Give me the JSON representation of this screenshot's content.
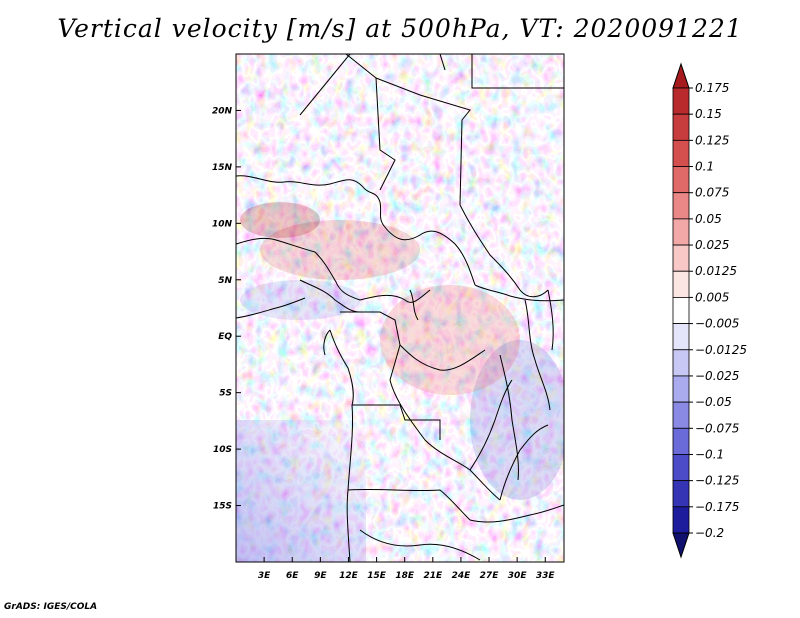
{
  "title": "Vertical velocity [m/s] at 500hPa, VT: 2020091221",
  "credit": "GrADS: IGES/COLA",
  "map": {
    "lon_range": [
      0,
      35
    ],
    "lat_range": [
      -20,
      25
    ],
    "lon_ticks": [
      "3E",
      "6E",
      "9E",
      "12E",
      "15E",
      "18E",
      "21E",
      "24E",
      "27E",
      "30E",
      "33E"
    ],
    "lat_ticks": [
      "20N",
      "15N",
      "10N",
      "5N",
      "EQ",
      "5S",
      "10S",
      "15S"
    ]
  },
  "colorbar": {
    "labels": [
      "0.175",
      "0.15",
      "0.125",
      "0.1",
      "0.075",
      "0.05",
      "0.025",
      "0.0125",
      "0.005",
      "−0.005",
      "−0.0125",
      "−0.025",
      "−0.05",
      "−0.075",
      "−0.1",
      "−0.125",
      "−0.175",
      "−0.2"
    ],
    "colors": [
      "#a51a1d",
      "#b82a2c",
      "#c73c3c",
      "#d4504f",
      "#df6a68",
      "#e98886",
      "#f1a8a6",
      "#f7c8c6",
      "#fce6e4",
      "#ffffff",
      "#e4e4fb",
      "#c8c8f4",
      "#aaaaee",
      "#8a8ae4",
      "#6a6ad8",
      "#4c4cc8",
      "#3434b4",
      "#1c1c9c",
      "#10106e"
    ]
  }
}
